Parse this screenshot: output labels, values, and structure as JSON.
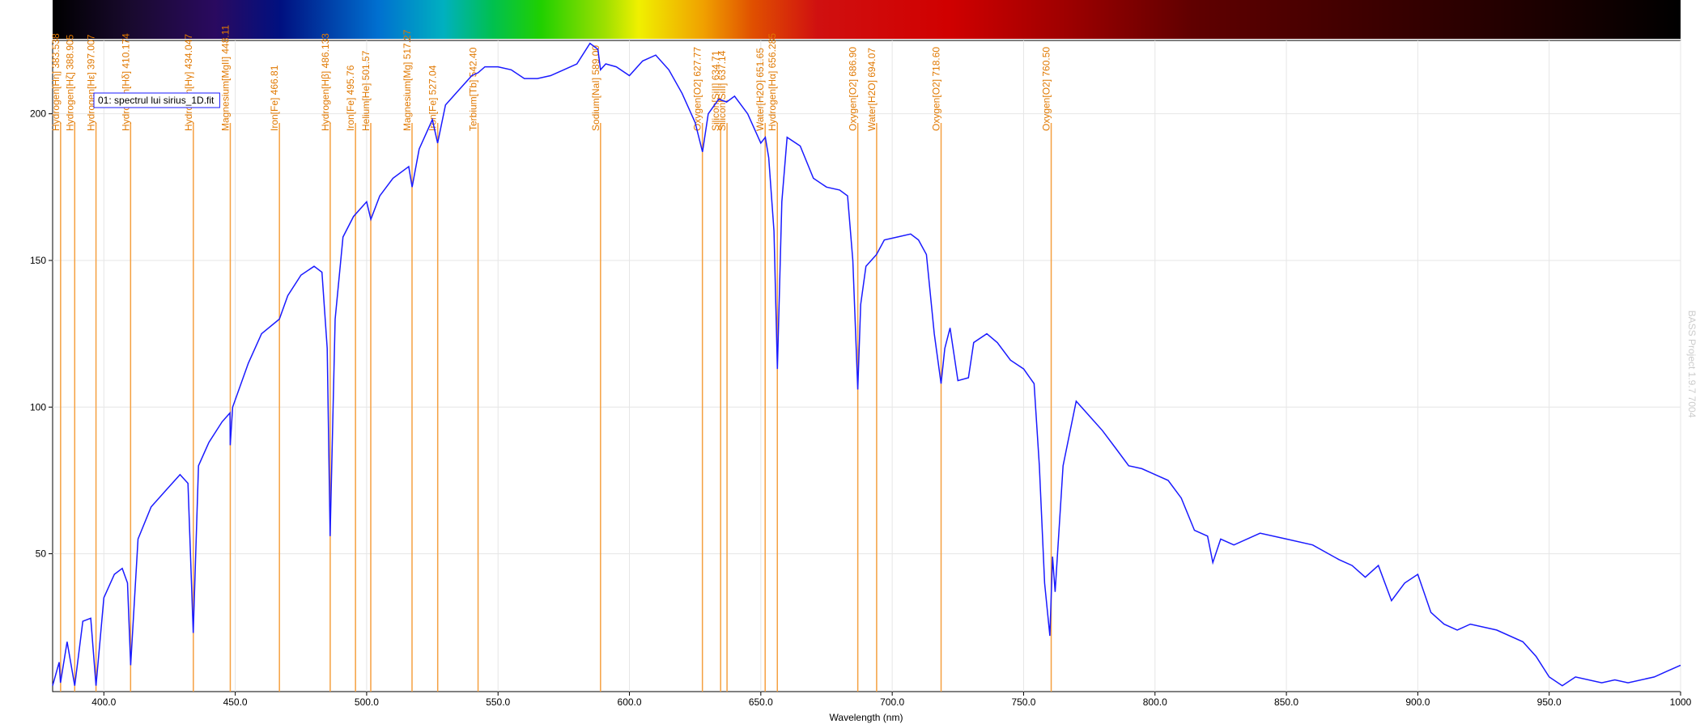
{
  "chart_data": {
    "type": "line",
    "xlabel": "Wavelength (nm)",
    "watermark": "BASS Project 1.9.7 7004",
    "grid": true,
    "legend": "top-left",
    "xlim": [
      380.5,
      1000
    ],
    "ylim": [
      3,
      225
    ],
    "xticks": [
      {
        "value": 400,
        "label": "400.0"
      },
      {
        "value": 450,
        "label": "450.0"
      },
      {
        "value": 500,
        "label": "500.0"
      },
      {
        "value": 550,
        "label": "550.0"
      },
      {
        "value": 600,
        "label": "600.0"
      },
      {
        "value": 650,
        "label": "650.0"
      },
      {
        "value": 700,
        "label": "700.0"
      },
      {
        "value": 750,
        "label": "750.0"
      },
      {
        "value": 800,
        "label": "800.0"
      },
      {
        "value": 850,
        "label": "850.0"
      },
      {
        "value": 900,
        "label": "900.0"
      },
      {
        "value": 950,
        "label": "950.0"
      },
      {
        "value": 1000,
        "label": "1000"
      }
    ],
    "yticks": [
      50,
      100,
      150,
      200
    ],
    "x": [
      380.5,
      383,
      383.5,
      386,
      388.9,
      392,
      395,
      397,
      400,
      404,
      407,
      409,
      410.2,
      413,
      418,
      424,
      429,
      432,
      434,
      436,
      440,
      445,
      448,
      448.1,
      449,
      455,
      460,
      466.8,
      470,
      475,
      480,
      483,
      485,
      486.1,
      488,
      491,
      495,
      500,
      501.6,
      505,
      510,
      516,
      517.3,
      520,
      525,
      527,
      530,
      535,
      540,
      542.4,
      545,
      550,
      555,
      560,
      565,
      570,
      575,
      580,
      585,
      588,
      589,
      591,
      595,
      600,
      605,
      610,
      615,
      620,
      625,
      627.8,
      630,
      634,
      637,
      640,
      645,
      650,
      651.7,
      653,
      655,
      656.3,
      658,
      660,
      665,
      670,
      675,
      680,
      683,
      685,
      686.9,
      688,
      690,
      694,
      697,
      702,
      707,
      710,
      713,
      716,
      718.6,
      720,
      722,
      725,
      729,
      731,
      736,
      740,
      745,
      750,
      754,
      756,
      758,
      760,
      761,
      762,
      765,
      770,
      775,
      780,
      785,
      790,
      795,
      800,
      805,
      810,
      815,
      820,
      822,
      825,
      830,
      840,
      850,
      860,
      870,
      875,
      880,
      885,
      890,
      895,
      900,
      905,
      910,
      915,
      920,
      930,
      940,
      945,
      950,
      955,
      960,
      970,
      975,
      980,
      990,
      995,
      1000
    ],
    "series": [
      {
        "name": "01: spectrul lui sirius_1D.fit",
        "color": "#1a1aff",
        "values": [
          5,
          13,
          6,
          20,
          5,
          27,
          28,
          5,
          35,
          43,
          45,
          40,
          12,
          55,
          66,
          72,
          77,
          74,
          23,
          80,
          88,
          95,
          98,
          87,
          100,
          115,
          125,
          130,
          138,
          145,
          148,
          146,
          120,
          56,
          130,
          158,
          165,
          170,
          164,
          172,
          178,
          182,
          175,
          188,
          198,
          190,
          203,
          208,
          213,
          214,
          216,
          216,
          215,
          212,
          212,
          213,
          215,
          217,
          224,
          222,
          215,
          217,
          216,
          213,
          218,
          220,
          215,
          207,
          197,
          187,
          200,
          205,
          204,
          206,
          200,
          190,
          192,
          185,
          160,
          113,
          170,
          192,
          189,
          178,
          175,
          174,
          172,
          150,
          106,
          135,
          148,
          152,
          157,
          158,
          159,
          157,
          152,
          125,
          108,
          120,
          127,
          109,
          110,
          122,
          125,
          122,
          116,
          113,
          108,
          80,
          40,
          22,
          49,
          37,
          80,
          102,
          97,
          92,
          86,
          80,
          79,
          77,
          75,
          69,
          58,
          56,
          47,
          55,
          53,
          57,
          55,
          53,
          48,
          46,
          42,
          46,
          34,
          40,
          43,
          30,
          26,
          24,
          26,
          24,
          20,
          15,
          8,
          5,
          8,
          6,
          7,
          6,
          8,
          10,
          12
        ]
      }
    ],
    "annotations": [
      {
        "label": "Hydrogen[Hη] 383.538",
        "x": 383.538
      },
      {
        "label": "Hydrogen[Hζ] 388.905",
        "x": 388.905
      },
      {
        "label": "Hydrogen[Hε] 397.007",
        "x": 397.007
      },
      {
        "label": "Hydrogen[Hδ] 410.174",
        "x": 410.174
      },
      {
        "label": "Hydrogen[Hγ] 434.047",
        "x": 434.047
      },
      {
        "label": "Magnesium[MgII] 448.11",
        "x": 448.11
      },
      {
        "label": "Iron[Fe] 466.81",
        "x": 466.81
      },
      {
        "label": "Hydrogen[Hβ] 486.133",
        "x": 486.133
      },
      {
        "label": "Iron[Fe] 495.76",
        "x": 495.76
      },
      {
        "label": "Helium[He] 501.57",
        "x": 501.57
      },
      {
        "label": "Magnesium[Mg] 517.27",
        "x": 517.27
      },
      {
        "label": "Iron[Fe] 527.04",
        "x": 527.04
      },
      {
        "label": "Terbium[Tb] 542.40",
        "x": 542.4
      },
      {
        "label": "Sodium[NaI] 589.00",
        "x": 589.0
      },
      {
        "label": "Oxygen[O2] 627.77",
        "x": 627.77
      },
      {
        "label": "Silicon[SiII] 634.71",
        "x": 634.71
      },
      {
        "label": "Silicon[SiII] 637.14",
        "x": 637.14
      },
      {
        "label": "Water[H2O] 651.65",
        "x": 651.65
      },
      {
        "label": "Hydrogen[Hα] 656.285",
        "x": 656.285
      },
      {
        "label": "Oxygen[O2] 686.90",
        "x": 686.9
      },
      {
        "label": "Water[H2O] 694.07",
        "x": 694.07
      },
      {
        "label": "Oxygen[O2] 718.60",
        "x": 718.6
      },
      {
        "label": "Oxygen[O2] 760.50",
        "x": 760.5
      }
    ]
  }
}
